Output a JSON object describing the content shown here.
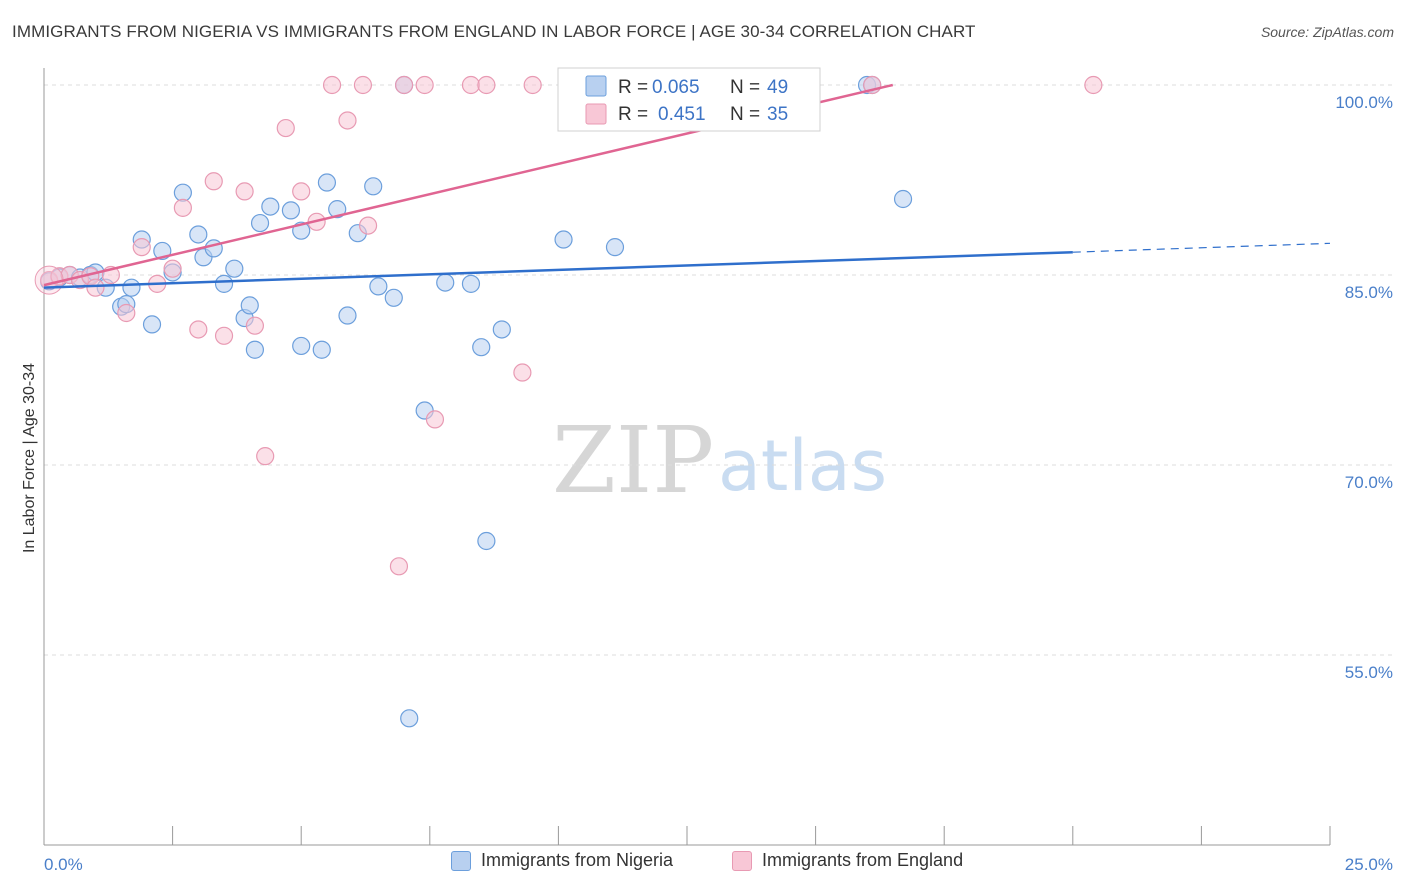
{
  "header": {
    "title": "IMMIGRANTS FROM NIGERIA VS IMMIGRANTS FROM ENGLAND IN LABOR FORCE | AGE 30-34 CORRELATION CHART",
    "source": "Source: ZipAtlas.com"
  },
  "watermark": {
    "zip": "ZIP",
    "atlas": "atlas"
  },
  "colors": {
    "nigeria_fill": "#b8d0f0",
    "nigeria_stroke": "#6c9fdc",
    "nigeria_line": "#2f6fcc",
    "england_fill": "#f8c7d6",
    "england_stroke": "#e89ab3",
    "england_line": "#e06592",
    "tick_text": "#4a7fc9",
    "grid": "#dcdcdc"
  },
  "chart_data": {
    "type": "scatter",
    "title": "IMMIGRANTS FROM NIGERIA VS IMMIGRANTS FROM ENGLAND IN LABOR FORCE | AGE 30-34 CORRELATION CHART",
    "xlabel": "",
    "ylabel": "In Labor Force | Age 30-34",
    "xlim": [
      0,
      25
    ],
    "ylim": [
      40,
      101.5
    ],
    "x_tick_labels": [
      {
        "value": 0,
        "label": "0.0%"
      },
      {
        "value": 25,
        "label": "25.0%"
      }
    ],
    "x_minor_ticks": [
      0,
      2.5,
      5,
      7.5,
      10,
      12.5,
      15,
      17.5,
      20,
      22.5,
      25
    ],
    "y_ticks": [
      {
        "value": 100,
        "label": "100.0%"
      },
      {
        "value": 85,
        "label": "85.0%"
      },
      {
        "value": 70,
        "label": "70.0%"
      },
      {
        "value": 55,
        "label": "55.0%"
      }
    ],
    "y_gridlines": [
      100,
      85,
      70,
      55
    ],
    "legend": [
      {
        "series": "Immigrants from Nigeria",
        "r_label": "R =",
        "r": "0.065",
        "n_label": "N =",
        "n": "49"
      },
      {
        "series": "Immigrants from England",
        "r_label": "R =",
        "r": "0.451",
        "n_label": "N =",
        "n": "35"
      }
    ],
    "series": [
      {
        "name": "Immigrants from Nigeria",
        "points": [
          [
            0.3,
            84.8
          ],
          [
            0.5,
            85.0
          ],
          [
            0.7,
            84.8
          ],
          [
            0.9,
            85.0
          ],
          [
            1.0,
            85.2
          ],
          [
            1.2,
            84.0
          ],
          [
            1.5,
            82.5
          ],
          [
            1.6,
            82.7
          ],
          [
            1.7,
            84.0
          ],
          [
            1.9,
            87.8
          ],
          [
            2.1,
            81.1
          ],
          [
            2.3,
            86.9
          ],
          [
            2.5,
            85.2
          ],
          [
            2.7,
            91.5
          ],
          [
            3.0,
            88.2
          ],
          [
            3.1,
            86.4
          ],
          [
            3.3,
            87.1
          ],
          [
            3.5,
            84.3
          ],
          [
            3.7,
            85.5
          ],
          [
            3.9,
            81.6
          ],
          [
            4.0,
            82.6
          ],
          [
            4.1,
            79.1
          ],
          [
            4.2,
            89.1
          ],
          [
            4.4,
            90.4
          ],
          [
            4.8,
            90.1
          ],
          [
            5.0,
            88.5
          ],
          [
            5.0,
            79.4
          ],
          [
            5.4,
            79.1
          ],
          [
            5.5,
            92.3
          ],
          [
            5.7,
            90.2
          ],
          [
            5.9,
            81.8
          ],
          [
            6.1,
            88.3
          ],
          [
            6.4,
            92.0
          ],
          [
            6.5,
            84.1
          ],
          [
            6.8,
            83.2
          ],
          [
            7.0,
            100.0
          ],
          [
            7.1,
            50.0
          ],
          [
            7.4,
            74.3
          ],
          [
            7.8,
            84.4
          ],
          [
            8.3,
            84.3
          ],
          [
            8.5,
            79.3
          ],
          [
            8.6,
            64.0
          ],
          [
            8.9,
            80.7
          ],
          [
            10.1,
            87.8
          ],
          [
            11.1,
            87.2
          ],
          [
            16.0,
            100.0
          ],
          [
            16.1,
            100.0
          ],
          [
            16.7,
            91.0
          ],
          [
            0.1,
            84.5
          ]
        ]
      },
      {
        "name": "Immigrants from England",
        "points": [
          [
            0.1,
            84.6
          ],
          [
            0.3,
            84.9
          ],
          [
            0.5,
            85.0
          ],
          [
            0.7,
            84.6
          ],
          [
            0.9,
            84.9
          ],
          [
            1.0,
            84.0
          ],
          [
            1.3,
            85.0
          ],
          [
            1.6,
            82.0
          ],
          [
            1.9,
            87.2
          ],
          [
            2.2,
            84.3
          ],
          [
            2.5,
            85.5
          ],
          [
            2.7,
            90.3
          ],
          [
            3.0,
            80.7
          ],
          [
            3.3,
            92.4
          ],
          [
            3.5,
            80.2
          ],
          [
            3.9,
            91.6
          ],
          [
            4.1,
            81.0
          ],
          [
            4.3,
            70.7
          ],
          [
            4.7,
            96.6
          ],
          [
            5.0,
            91.6
          ],
          [
            5.3,
            89.2
          ],
          [
            5.6,
            100.0
          ],
          [
            5.9,
            97.2
          ],
          [
            6.2,
            100.0
          ],
          [
            6.3,
            88.9
          ],
          [
            6.9,
            62.0
          ],
          [
            7.0,
            100.0
          ],
          [
            7.4,
            100.0
          ],
          [
            7.6,
            73.6
          ],
          [
            8.3,
            100.0
          ],
          [
            8.6,
            100.0
          ],
          [
            9.3,
            77.3
          ],
          [
            9.5,
            100.0
          ],
          [
            16.1,
            100.0
          ],
          [
            20.4,
            100.0
          ]
        ]
      }
    ],
    "trendlines": [
      {
        "series": "Immigrants from Nigeria",
        "solid": [
          [
            0,
            84.0
          ],
          [
            20.0,
            86.8
          ]
        ],
        "dashed": [
          [
            20.0,
            86.8
          ],
          [
            25.0,
            87.5
          ]
        ]
      },
      {
        "series": "Immigrants from England",
        "solid": [
          [
            0,
            84.2
          ],
          [
            16.5,
            100.0
          ]
        ]
      }
    ]
  }
}
